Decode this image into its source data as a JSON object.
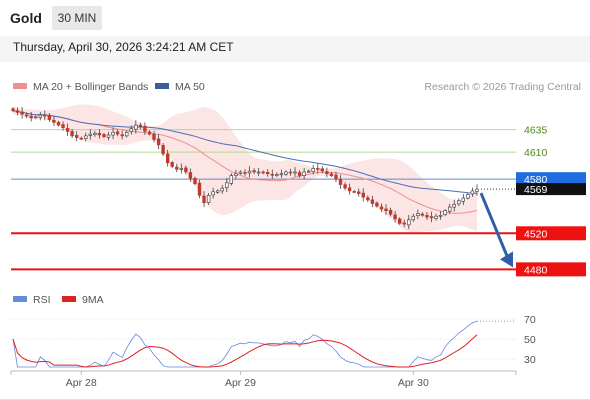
{
  "header": {
    "instrument": "Gold",
    "timeframe": "30 MIN"
  },
  "timestamp": "Thursday, April 30, 2026 3:24:21 AM CET",
  "legend": {
    "ma20": "MA 20 + Bollinger Bands",
    "ma50": "MA 50",
    "copyright": "Research © 2026 Trading Central"
  },
  "rsi_legend": {
    "rsi": "RSI",
    "ma9": "9MA"
  },
  "colors": {
    "up": "#2f8a2f",
    "down": "#c0392b",
    "ma20": "#f08f8f",
    "ma50": "#4a6fb5",
    "band": "#fbdcdc",
    "green": "#b5d98c",
    "blue_line": "#6688cc",
    "red_line": "#ee1111",
    "arrow": "#2f5fa8",
    "rsi": "#6688dd",
    "rsi_ma": "#dd2222"
  },
  "chart_data": [
    {
      "type": "candlestick",
      "title": "",
      "y_range": [
        4466,
        4670
      ],
      "x_ticks": [
        "Apr 28",
        "Apr 29",
        "Apr 30"
      ],
      "series": [
        {
          "name": "MA 20 + Bollinger Bands"
        },
        {
          "name": "MA 50"
        }
      ],
      "levels": [
        {
          "value": 4635,
          "label": "4635",
          "kind": "resistance"
        },
        {
          "value": 4610,
          "label": "4610",
          "kind": "resistance"
        },
        {
          "value": 4580,
          "label": "4580",
          "kind": "pivot"
        },
        {
          "value": 4569,
          "label": "4569",
          "kind": "last"
        },
        {
          "value": 4520,
          "label": "4520",
          "kind": "support"
        },
        {
          "value": 4480,
          "label": "4480",
          "kind": "support"
        }
      ],
      "close": [
        4656,
        4654,
        4652,
        4650,
        4648,
        4649,
        4651,
        4650,
        4646,
        4643,
        4640,
        4637,
        4633,
        4628,
        4626,
        4625,
        4628,
        4630,
        4631,
        4629,
        4627,
        4629,
        4632,
        4630,
        4628,
        4632,
        4636,
        4640,
        4638,
        4633,
        4630,
        4624,
        4618,
        4608,
        4598,
        4594,
        4591,
        4592,
        4588,
        4581,
        4575,
        4562,
        4554,
        4562,
        4566,
        4567,
        4570,
        4576,
        4584,
        4586,
        4588,
        4587,
        4589,
        4588,
        4588,
        4587,
        4586,
        4585,
        4585,
        4586,
        4588,
        4587,
        4588,
        4584,
        4588,
        4589,
        4592,
        4591,
        4589,
        4586,
        4584,
        4580,
        4574,
        4570,
        4567,
        4566,
        4564,
        4560,
        4557,
        4553,
        4550,
        4547,
        4545,
        4541,
        4536,
        4531,
        4530,
        4535,
        4539,
        4542,
        4540,
        4538,
        4537,
        4539,
        4540,
        4545,
        4549,
        4552,
        4556,
        4559,
        4563,
        4567,
        4569
      ],
      "arrow": {
        "from": 4569,
        "to": 4480
      }
    },
    {
      "type": "line",
      "title": "RSI",
      "y_range": [
        20,
        80
      ],
      "y_ticks": [
        70,
        50,
        30
      ],
      "series": [
        {
          "name": "RSI"
        },
        {
          "name": "9MA"
        }
      ]
    }
  ]
}
